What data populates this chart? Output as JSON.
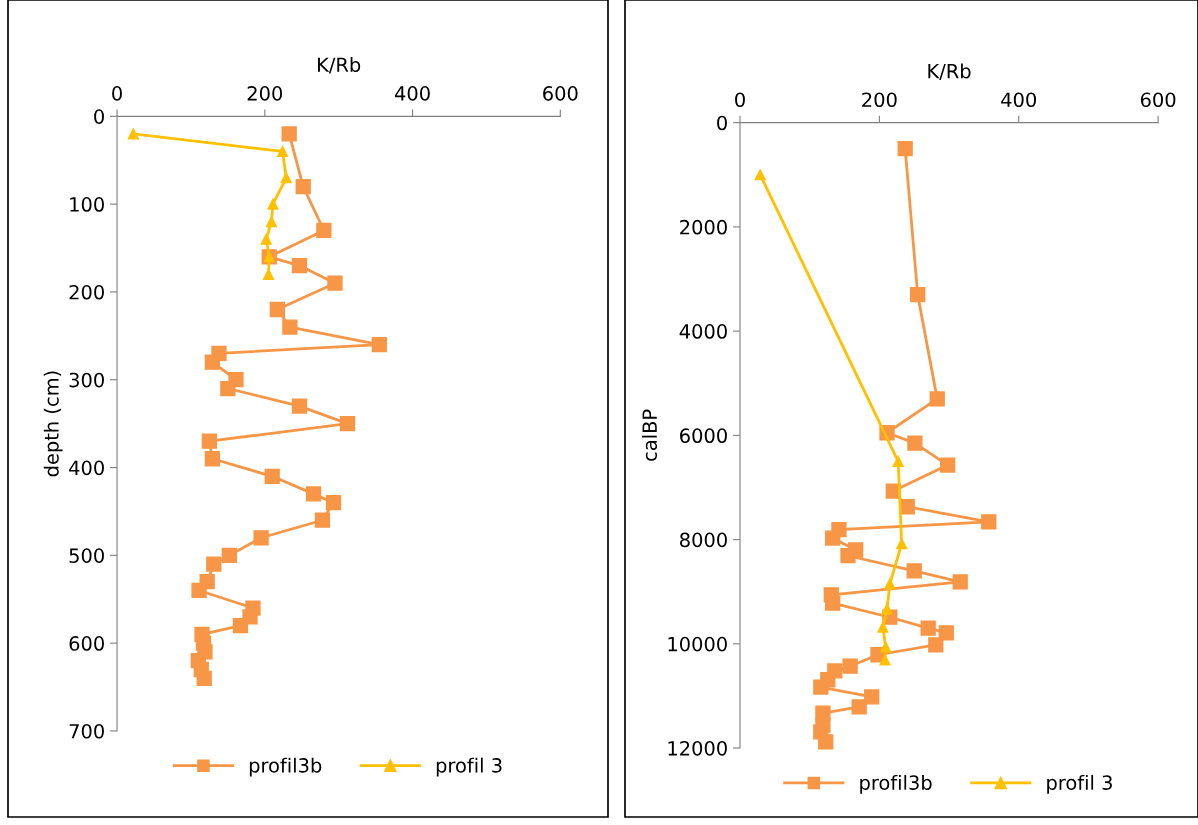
{
  "chart_data": [
    {
      "type": "line",
      "xlabel": "K/Rb",
      "ylabel": "depth (cm)",
      "xlim": [
        0,
        600
      ],
      "xticks": [
        0,
        200,
        400,
        600
      ],
      "ylim": [
        700,
        0
      ],
      "yticks": [
        0,
        100,
        200,
        300,
        400,
        500,
        600,
        700
      ],
      "grid": false,
      "legend": "bottom",
      "line_style": "solid",
      "series": [
        {
          "name": "profil3b",
          "color": "#f79646",
          "marker": "square",
          "x": [
            233,
            252,
            280,
            206,
            247,
            295,
            217,
            234,
            355,
            138,
            129,
            161,
            150,
            247,
            312,
            125,
            129,
            210,
            266,
            293,
            278,
            195,
            152,
            131,
            122,
            111,
            184,
            180,
            167,
            115,
            117,
            119,
            110,
            114,
            118
          ],
          "values": [
            20,
            80,
            130,
            160,
            170,
            190,
            220,
            240,
            260,
            270,
            280,
            300,
            310,
            330,
            350,
            370,
            390,
            410,
            430,
            440,
            460,
            480,
            500,
            510,
            530,
            540,
            560,
            570,
            580,
            590,
            600,
            610,
            620,
            630,
            640
          ]
        },
        {
          "name": "profil 3",
          "color": "#ffc000",
          "marker": "triangle",
          "x": [
            22,
            224,
            229,
            211,
            209,
            202,
            206,
            205
          ],
          "values": [
            20,
            40,
            70,
            100,
            120,
            140,
            160,
            180
          ]
        }
      ]
    },
    {
      "type": "line",
      "xlabel": "K/Rb",
      "ylabel": "calBP",
      "xlim": [
        0,
        600
      ],
      "xticks": [
        0,
        200,
        400,
        600
      ],
      "ylim": [
        12000,
        0
      ],
      "yticks": [
        0,
        2000,
        4000,
        6000,
        8000,
        10000,
        12000
      ],
      "grid": false,
      "legend": "bottom",
      "line_style": "solid",
      "series": [
        {
          "name": "profil3b",
          "color": "#f79646",
          "marker": "square",
          "x": [
            237,
            255,
            283,
            211,
            251,
            298,
            220,
            240,
            357,
            142,
            133,
            166,
            155,
            250,
            316,
            131,
            133,
            215,
            270,
            296,
            281,
            198,
            158,
            136,
            126,
            116,
            189,
            171,
            119,
            119,
            116,
            123
          ],
          "values": [
            500,
            3300,
            5300,
            5950,
            6150,
            6570,
            7070,
            7370,
            7660,
            7810,
            7970,
            8200,
            8310,
            8600,
            8810,
            9060,
            9220,
            9490,
            9700,
            9790,
            10020,
            10210,
            10430,
            10520,
            10690,
            10830,
            11020,
            11210,
            11330,
            11560,
            11690,
            11880
          ]
        },
        {
          "name": "profil 3",
          "color": "#ffc000",
          "marker": "triangle",
          "x": [
            29,
            227,
            232,
            215,
            211,
            205,
            209,
            208
          ],
          "values": [
            1000,
            6500,
            8080,
            8850,
            9330,
            9680,
            10060,
            10310
          ]
        }
      ]
    }
  ]
}
